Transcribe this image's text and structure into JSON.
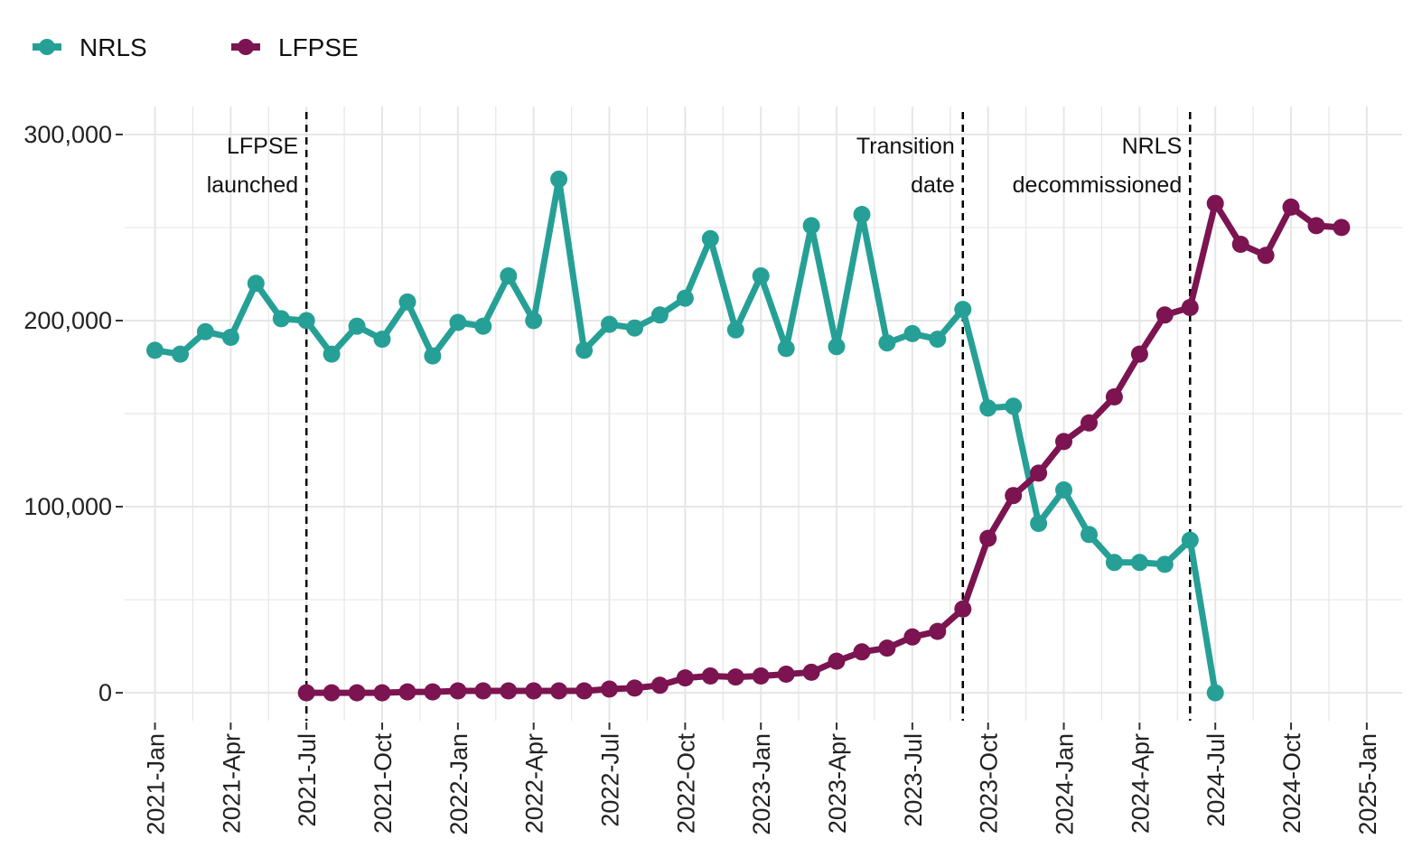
{
  "colors": {
    "NRLS": "#26A096",
    "LFPSE": "#7B1450",
    "grid": "#e6e6e6",
    "vline": "#000000"
  },
  "chart_data": {
    "type": "line",
    "title": "",
    "xlabel": "",
    "ylabel": "",
    "ylim": [
      -15000,
      315000
    ],
    "yticks": [
      0,
      100000,
      200000,
      300000
    ],
    "ytick_labels": [
      "0",
      "100,000",
      "200,000",
      "300,000"
    ],
    "xtick_labels": [
      "2021-Jan",
      "2021-Apr",
      "2021-Jul",
      "2021-Oct",
      "2022-Jan",
      "2022-Apr",
      "2022-Jul",
      "2022-Oct",
      "2023-Jan",
      "2023-Apr",
      "2023-Jul",
      "2023-Oct",
      "2024-Jan",
      "2024-Apr",
      "2024-Jul",
      "2024-Oct",
      "2025-Jan"
    ],
    "grid": true,
    "legend_position": "top-left",
    "x": [
      "2021-01",
      "2021-02",
      "2021-03",
      "2021-04",
      "2021-05",
      "2021-06",
      "2021-07",
      "2021-08",
      "2021-09",
      "2021-10",
      "2021-11",
      "2021-12",
      "2022-01",
      "2022-02",
      "2022-03",
      "2022-04",
      "2022-05",
      "2022-06",
      "2022-07",
      "2022-08",
      "2022-09",
      "2022-10",
      "2022-11",
      "2022-12",
      "2023-01",
      "2023-02",
      "2023-03",
      "2023-04",
      "2023-05",
      "2023-06",
      "2023-07",
      "2023-08",
      "2023-09",
      "2023-10",
      "2023-11",
      "2023-12",
      "2024-01",
      "2024-02",
      "2024-03",
      "2024-04",
      "2024-05",
      "2024-06",
      "2024-07",
      "2024-08",
      "2024-09",
      "2024-10",
      "2024-11",
      "2024-12"
    ],
    "series": [
      {
        "name": "NRLS",
        "values": [
          184000,
          182000,
          194000,
          191000,
          220000,
          201000,
          200000,
          182000,
          197000,
          190000,
          210000,
          181000,
          199000,
          197000,
          224000,
          200000,
          276000,
          184000,
          198000,
          196000,
          203000,
          212000,
          244000,
          195000,
          224000,
          185000,
          251000,
          186000,
          257000,
          188000,
          193000,
          190000,
          206000,
          153000,
          154000,
          91000,
          109000,
          85000,
          70000,
          70000,
          69000,
          82000,
          0,
          null,
          null,
          null,
          null,
          null
        ]
      },
      {
        "name": "LFPSE",
        "values": [
          null,
          null,
          null,
          null,
          null,
          null,
          0,
          0,
          0,
          0,
          500,
          500,
          1000,
          1000,
          1000,
          1000,
          1000,
          1000,
          2000,
          2500,
          4000,
          8000,
          9000,
          8500,
          9000,
          10000,
          11000,
          17000,
          22000,
          24000,
          30000,
          33000,
          45000,
          83000,
          106000,
          118000,
          135000,
          145000,
          159000,
          182000,
          203000,
          207000,
          263000,
          241000,
          235000,
          261000,
          251000,
          250000
        ]
      }
    ],
    "annotations": [
      {
        "x": "2021-07",
        "lines": [
          "LFPSE",
          "launched"
        ]
      },
      {
        "x": "2023-09",
        "lines": [
          "Transition",
          "date"
        ]
      },
      {
        "x": "2024-06",
        "lines": [
          "NRLS",
          "decommissioned"
        ]
      }
    ]
  }
}
